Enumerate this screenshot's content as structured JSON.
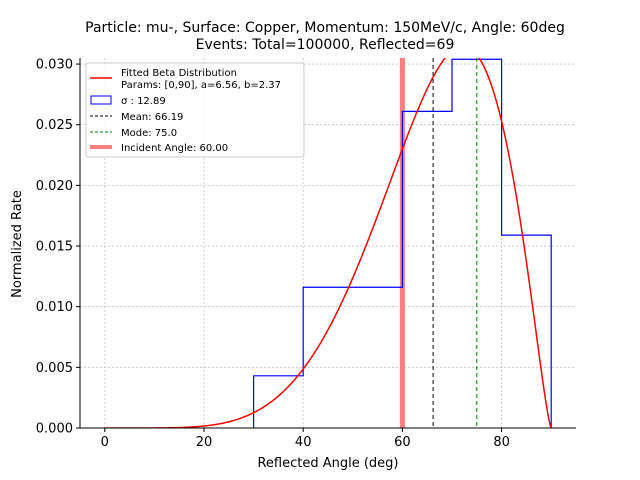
{
  "chart_data": {
    "type": "histogram",
    "title_line1": "Particle: mu-, Surface: Copper, Momentum: 150MeV/c, Angle: 60deg",
    "title_line2": "Events: Total=100000, Reflected=69",
    "xlabel": "Reflected Angle (deg)",
    "ylabel": "Normalized Rate",
    "xlim": [
      -5,
      95
    ],
    "ylim": [
      0,
      0.0305
    ],
    "xticks": [
      0,
      20,
      40,
      60,
      80
    ],
    "yticks": [
      "0.000",
      "0.005",
      "0.010",
      "0.015",
      "0.020",
      "0.025",
      "0.030"
    ],
    "grid": true,
    "histogram": {
      "bin_edges": [
        30,
        40,
        50,
        60,
        70,
        80,
        90
      ],
      "values": [
        0.0043,
        0.0116,
        0.0116,
        0.0261,
        0.0304,
        0.0159
      ],
      "color": "#0000ff"
    },
    "fit": {
      "a": 6.56,
      "b": 2.37,
      "range": [
        0,
        90
      ],
      "color": "#ff0000"
    },
    "mean": 66.19,
    "mode": 75.0,
    "incident_angle": 60.0,
    "legend": {
      "placement": "upper-left",
      "fit_line1": "Fitted Beta Distribution",
      "fit_line2": "Params: [0,90], a=6.56, b=2.37",
      "sigma": "σ : 12.89",
      "mean": "Mean: 66.19",
      "mode": "Mode: 75.0",
      "incident": "Incident Angle: 60.00"
    },
    "colors": {
      "fit": "#ff0000",
      "hist": "#0000ff",
      "mean": "#000000",
      "mode": "#008000",
      "incident": "#ff7f7f",
      "grid": "#b0b0b0"
    }
  }
}
